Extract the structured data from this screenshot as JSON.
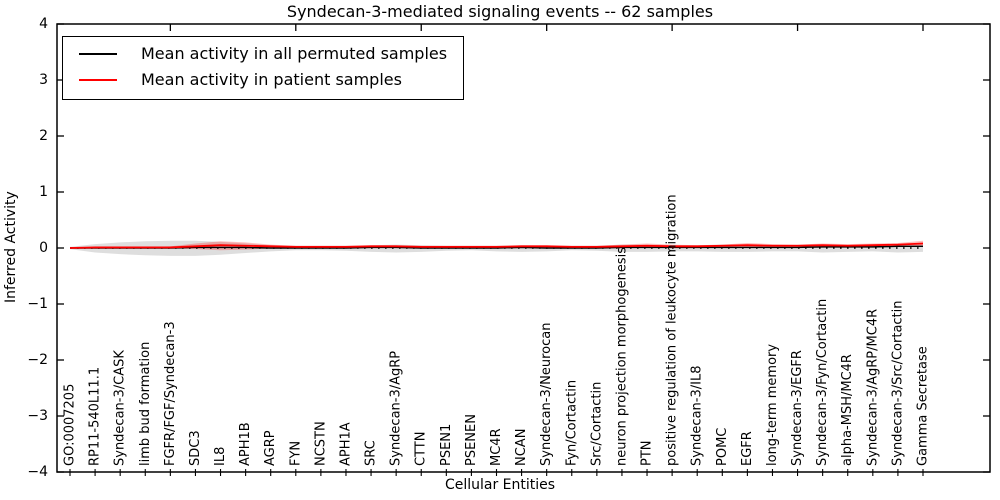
{
  "chart_data": {
    "type": "line",
    "title": "Syndecan-3-mediated signaling events -- 62 samples",
    "xlabel": "Cellular Entities",
    "ylabel": "Inferred Activity",
    "ylim": [
      -4,
      4
    ],
    "yticks": [
      -4,
      -3,
      -2,
      -1,
      0,
      1,
      2,
      3,
      4
    ],
    "ytick_labels": [
      "−4",
      "−3",
      "−2",
      "−1",
      "0",
      "1",
      "2",
      "3",
      "4"
    ],
    "grid": false,
    "legend_position": "upper left",
    "categories": [
      "GO:0007205",
      "RP11-540L11.1",
      "Syndecan-3/CASK",
      "limb bud formation",
      "FGFR/FGF/Syndecan-3",
      "SDC3",
      "IL8",
      "APH1B",
      "AGRP",
      "FYN",
      "NCSTN",
      "APH1A",
      "SRC",
      "Syndecan-3/AgRP",
      "CTTN",
      "PSEN1",
      "PSENEN",
      "MC4R",
      "NCAN",
      "Syndecan-3/Neurocan",
      "Fyn/Cortactin",
      "Src/Cortactin",
      "neuron projection morphogenesis",
      "PTN",
      "positive regulation of leukocyte migration",
      "Syndecan-3/IL8",
      "POMC",
      "EGFR",
      "long-term memory",
      "Syndecan-3/EGFR",
      "Syndecan-3/Fyn/Cortactin",
      "alpha-MSH/MC4R",
      "Syndecan-3/AgRP/MC4R",
      "Syndecan-3/Src/Cortactin",
      "Gamma Secretase"
    ],
    "series": [
      {
        "name": "Mean activity in all permuted samples",
        "color": "#000000",
        "style": "solid",
        "values": [
          0,
          0,
          0,
          0,
          0,
          0.01,
          0.01,
          0.01,
          0,
          0,
          0,
          0,
          0.01,
          0.01,
          0,
          0,
          0,
          0,
          0.01,
          0,
          0,
          0,
          0.01,
          0.01,
          0.01,
          0.01,
          0.01,
          0.01,
          0.01,
          0.01,
          0.02,
          0.02,
          0.02,
          0.03,
          0.03
        ]
      },
      {
        "name": "Mean activity in patient samples",
        "color": "#ff0000",
        "style": "solid",
        "values": [
          0,
          0.01,
          0.01,
          0.01,
          0.01,
          0.03,
          0.05,
          0.04,
          0.03,
          0.02,
          0.02,
          0.02,
          0.03,
          0.03,
          0.02,
          0.02,
          0.02,
          0.02,
          0.03,
          0.03,
          0.02,
          0.02,
          0.03,
          0.04,
          0.03,
          0.03,
          0.04,
          0.05,
          0.04,
          0.04,
          0.05,
          0.04,
          0.05,
          0.06,
          0.08
        ]
      }
    ],
    "bands": [
      {
        "name": "permuted samples range",
        "color": "#999999",
        "opacity": 0.32,
        "upper": [
          0.02,
          0.07,
          0.1,
          0.12,
          0.13,
          0.13,
          0.11,
          0.08,
          0.05,
          0.04,
          0.04,
          0.04,
          0.05,
          0.06,
          0.05,
          0.04,
          0.04,
          0.04,
          0.05,
          0.04,
          0.04,
          0.04,
          0.06,
          0.06,
          0.05,
          0.05,
          0.06,
          0.06,
          0.05,
          0.05,
          0.06,
          0.05,
          0.05,
          0.06,
          0.06
        ],
        "lower": [
          -0.02,
          -0.08,
          -0.11,
          -0.13,
          -0.14,
          -0.14,
          -0.12,
          -0.09,
          -0.06,
          -0.04,
          -0.04,
          -0.05,
          -0.07,
          -0.08,
          -0.07,
          -0.05,
          -0.04,
          -0.06,
          -0.07,
          -0.06,
          -0.04,
          -0.05,
          -0.07,
          -0.07,
          -0.06,
          -0.06,
          -0.07,
          -0.07,
          -0.06,
          -0.06,
          -0.08,
          -0.07,
          -0.06,
          -0.08,
          -0.07
        ]
      },
      {
        "name": "patient samples range",
        "color": "#ff0000",
        "opacity": 0.25,
        "upper": [
          0.01,
          0.02,
          0.02,
          0.02,
          0.03,
          0.08,
          0.12,
          0.1,
          0.06,
          0.04,
          0.04,
          0.04,
          0.05,
          0.05,
          0.04,
          0.04,
          0.04,
          0.04,
          0.05,
          0.05,
          0.04,
          0.04,
          0.06,
          0.08,
          0.06,
          0.05,
          0.06,
          0.09,
          0.07,
          0.06,
          0.08,
          0.07,
          0.08,
          0.09,
          0.13
        ],
        "lower": [
          -0.01,
          0,
          0,
          -0.01,
          -0.01,
          -0.02,
          -0.04,
          -0.03,
          -0.01,
          0,
          0,
          0.01,
          0.01,
          0.01,
          0.01,
          0,
          0,
          0.01,
          0.01,
          0.01,
          0.01,
          0.01,
          0.01,
          0.01,
          0.01,
          0.01,
          0.02,
          0.02,
          0.02,
          0.02,
          0.02,
          0.02,
          0.02,
          0.03,
          0.03
        ]
      }
    ],
    "reference_line": {
      "y": 0,
      "color": "#000000",
      "style": "dotted"
    }
  }
}
